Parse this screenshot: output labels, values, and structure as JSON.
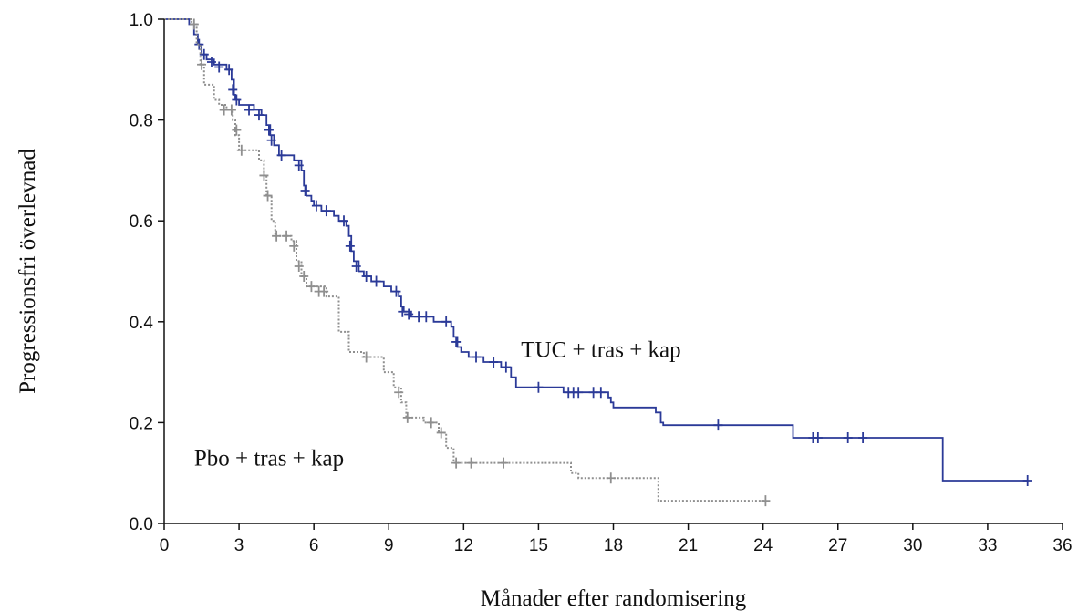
{
  "chart_data": {
    "type": "line",
    "xlabel": "Månader efter randomisering",
    "ylabel": "Progressionsfri överlevnad",
    "xlim": [
      0,
      36
    ],
    "ylim": [
      0,
      1.0
    ],
    "x_ticks": [
      0,
      3,
      6,
      9,
      12,
      15,
      18,
      21,
      24,
      27,
      30,
      33,
      36
    ],
    "y_ticks": [
      0.0,
      0.2,
      0.4,
      0.6,
      0.8,
      1.0
    ],
    "x_tick_labels": [
      "0",
      "3",
      "6",
      "9",
      "12",
      "15",
      "18",
      "21",
      "24",
      "27",
      "30",
      "33",
      "36"
    ],
    "y_tick_labels": [
      "0.0",
      "0.2",
      "0.4",
      "0.6",
      "0.8",
      "1.0"
    ],
    "grid": false,
    "series": [
      {
        "name": "TUC + tras + kap",
        "color": "#2b3a98",
        "line_style": "solid",
        "steps": [
          [
            0,
            1.0
          ],
          [
            1.0,
            0.99
          ],
          [
            1.2,
            0.97
          ],
          [
            1.35,
            0.95
          ],
          [
            1.5,
            0.93
          ],
          [
            1.7,
            0.92
          ],
          [
            2.0,
            0.91
          ],
          [
            2.5,
            0.9
          ],
          [
            2.7,
            0.88
          ],
          [
            2.8,
            0.85
          ],
          [
            2.85,
            0.84
          ],
          [
            3.0,
            0.83
          ],
          [
            3.6,
            0.82
          ],
          [
            3.9,
            0.81
          ],
          [
            4.1,
            0.79
          ],
          [
            4.25,
            0.77
          ],
          [
            4.4,
            0.75
          ],
          [
            4.6,
            0.73
          ],
          [
            5.2,
            0.72
          ],
          [
            5.5,
            0.7
          ],
          [
            5.6,
            0.67
          ],
          [
            5.7,
            0.65
          ],
          [
            5.9,
            0.64
          ],
          [
            6.0,
            0.63
          ],
          [
            6.3,
            0.62
          ],
          [
            6.8,
            0.61
          ],
          [
            7.0,
            0.6
          ],
          [
            7.3,
            0.59
          ],
          [
            7.4,
            0.57
          ],
          [
            7.5,
            0.54
          ],
          [
            7.6,
            0.52
          ],
          [
            7.8,
            0.5
          ],
          [
            8.0,
            0.49
          ],
          [
            8.3,
            0.48
          ],
          [
            8.8,
            0.47
          ],
          [
            9.1,
            0.46
          ],
          [
            9.4,
            0.45
          ],
          [
            9.5,
            0.43
          ],
          [
            9.6,
            0.42
          ],
          [
            9.9,
            0.41
          ],
          [
            10.8,
            0.4
          ],
          [
            11.5,
            0.39
          ],
          [
            11.6,
            0.37
          ],
          [
            11.75,
            0.35
          ],
          [
            11.9,
            0.34
          ],
          [
            12.2,
            0.33
          ],
          [
            12.8,
            0.32
          ],
          [
            13.5,
            0.31
          ],
          [
            13.9,
            0.29
          ],
          [
            14.1,
            0.27
          ],
          [
            15.5,
            0.27
          ],
          [
            16.0,
            0.26
          ],
          [
            17.8,
            0.25
          ],
          [
            17.9,
            0.24
          ],
          [
            18.0,
            0.23
          ],
          [
            19.7,
            0.22
          ],
          [
            19.9,
            0.2
          ],
          [
            20.0,
            0.195
          ],
          [
            25.1,
            0.195
          ],
          [
            25.2,
            0.17
          ],
          [
            31.1,
            0.17
          ],
          [
            31.2,
            0.085
          ],
          [
            34.6,
            0.085
          ]
        ],
        "censored": [
          [
            1.4,
            0.95
          ],
          [
            1.6,
            0.93
          ],
          [
            1.9,
            0.915
          ],
          [
            2.2,
            0.905
          ],
          [
            2.6,
            0.9
          ],
          [
            2.75,
            0.86
          ],
          [
            2.9,
            0.84
          ],
          [
            3.4,
            0.82
          ],
          [
            3.8,
            0.81
          ],
          [
            4.2,
            0.78
          ],
          [
            4.3,
            0.76
          ],
          [
            4.7,
            0.73
          ],
          [
            5.4,
            0.71
          ],
          [
            5.65,
            0.66
          ],
          [
            6.1,
            0.63
          ],
          [
            6.5,
            0.62
          ],
          [
            7.2,
            0.6
          ],
          [
            7.45,
            0.55
          ],
          [
            7.7,
            0.51
          ],
          [
            8.1,
            0.49
          ],
          [
            8.5,
            0.48
          ],
          [
            9.3,
            0.46
          ],
          [
            9.55,
            0.42
          ],
          [
            9.8,
            0.415
          ],
          [
            10.2,
            0.41
          ],
          [
            10.5,
            0.41
          ],
          [
            11.3,
            0.4
          ],
          [
            11.7,
            0.36
          ],
          [
            12.5,
            0.33
          ],
          [
            13.2,
            0.32
          ],
          [
            13.7,
            0.31
          ],
          [
            15.0,
            0.27
          ],
          [
            16.2,
            0.26
          ],
          [
            16.4,
            0.26
          ],
          [
            16.6,
            0.26
          ],
          [
            17.2,
            0.26
          ],
          [
            17.5,
            0.26
          ],
          [
            22.2,
            0.195
          ],
          [
            26.0,
            0.17
          ],
          [
            26.2,
            0.17
          ],
          [
            27.4,
            0.17
          ],
          [
            28.0,
            0.17
          ],
          [
            34.6,
            0.085
          ]
        ]
      },
      {
        "name": "Pbo + tras + kap",
        "color": "#8f8f8f",
        "line_style": "dotted",
        "steps": [
          [
            0,
            1.0
          ],
          [
            1.1,
            0.99
          ],
          [
            1.3,
            0.95
          ],
          [
            1.45,
            0.91
          ],
          [
            1.6,
            0.87
          ],
          [
            2.0,
            0.84
          ],
          [
            2.2,
            0.83
          ],
          [
            2.5,
            0.82
          ],
          [
            2.75,
            0.8
          ],
          [
            2.85,
            0.77
          ],
          [
            3.0,
            0.74
          ],
          [
            3.8,
            0.72
          ],
          [
            4.0,
            0.69
          ],
          [
            4.1,
            0.65
          ],
          [
            4.3,
            0.6
          ],
          [
            4.45,
            0.57
          ],
          [
            5.1,
            0.56
          ],
          [
            5.3,
            0.52
          ],
          [
            5.5,
            0.49
          ],
          [
            5.7,
            0.47
          ],
          [
            6.5,
            0.45
          ],
          [
            7.0,
            0.38
          ],
          [
            7.4,
            0.34
          ],
          [
            8.0,
            0.33
          ],
          [
            8.8,
            0.3
          ],
          [
            9.2,
            0.27
          ],
          [
            9.5,
            0.24
          ],
          [
            9.7,
            0.21
          ],
          [
            10.4,
            0.2
          ],
          [
            11.0,
            0.18
          ],
          [
            11.3,
            0.15
          ],
          [
            11.6,
            0.12
          ],
          [
            16.3,
            0.1
          ],
          [
            16.6,
            0.09
          ],
          [
            19.8,
            0.045
          ],
          [
            24.1,
            0.045
          ]
        ],
        "censored": [
          [
            1.2,
            0.99
          ],
          [
            1.5,
            0.91
          ],
          [
            2.4,
            0.82
          ],
          [
            2.7,
            0.82
          ],
          [
            2.9,
            0.78
          ],
          [
            3.1,
            0.74
          ],
          [
            4.0,
            0.69
          ],
          [
            4.15,
            0.65
          ],
          [
            4.5,
            0.57
          ],
          [
            4.9,
            0.57
          ],
          [
            5.2,
            0.55
          ],
          [
            5.4,
            0.51
          ],
          [
            5.6,
            0.49
          ],
          [
            5.9,
            0.47
          ],
          [
            6.2,
            0.46
          ],
          [
            6.4,
            0.46
          ],
          [
            8.1,
            0.33
          ],
          [
            9.4,
            0.26
          ],
          [
            9.75,
            0.21
          ],
          [
            10.7,
            0.2
          ],
          [
            11.1,
            0.18
          ],
          [
            11.7,
            0.12
          ],
          [
            12.3,
            0.12
          ],
          [
            13.6,
            0.12
          ],
          [
            17.9,
            0.09
          ],
          [
            24.1,
            0.045
          ]
        ]
      }
    ],
    "annotations": [
      {
        "text": "TUC + tras + kap",
        "x": 14.3,
        "y": 0.33
      },
      {
        "text": "Pbo + tras + kap",
        "x": 1.2,
        "y": 0.115
      }
    ]
  }
}
